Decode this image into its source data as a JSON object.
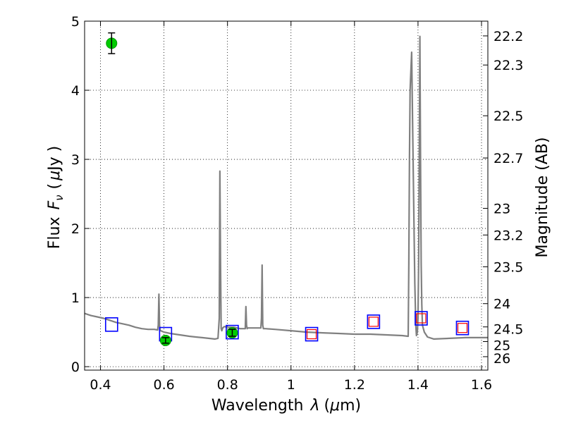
{
  "chart_data": {
    "type": "line",
    "xlabel_text": "Wavelength",
    "xlabel_symbol": "λ",
    "xlabel_unit_open": "(",
    "xlabel_unit_mu": "μ",
    "xlabel_unit_rest": "m)",
    "ylabel_text": "Flux",
    "ylabel_symbol": "F",
    "ylabel_subscript": "ν",
    "ylabel_unit_open": "(",
    "ylabel_unit_mu": "μ",
    "ylabel_unit_rest": "Jy )",
    "y2label": "Magnitude (AB)",
    "xlim": [
      0.35,
      1.62
    ],
    "ylim": [
      -0.05,
      5.0
    ],
    "grid": true,
    "x_ticks": [
      0.4,
      0.6,
      0.8,
      1.0,
      1.2,
      1.4,
      1.6
    ],
    "x_tick_labels": [
      "0.4",
      "0.6",
      "0.8",
      "1",
      "1.2",
      "1.4",
      "1.6"
    ],
    "y_ticks": [
      0,
      1,
      2,
      3,
      4,
      5
    ],
    "y_tick_labels": [
      "0",
      "1",
      "2",
      "3",
      "4",
      "5"
    ],
    "mag_ticks": [
      22.2,
      22.3,
      22.5,
      22.7,
      23,
      23.2,
      23.5,
      24,
      24.5,
      25,
      26
    ],
    "mag_tick_labels": [
      "22.2",
      "22.3",
      "22.5",
      "22.7",
      "23",
      "23.2",
      "23.5",
      "24",
      "24.5",
      "25",
      "26"
    ],
    "series": [
      {
        "kind": "model_spectrum",
        "color": "#808080",
        "x": [
          0.35,
          0.37,
          0.39,
          0.41,
          0.43,
          0.45,
          0.47,
          0.49,
          0.51,
          0.53,
          0.55,
          0.57,
          0.58,
          0.582,
          0.584,
          0.586,
          0.588,
          0.59,
          0.6,
          0.62,
          0.65,
          0.68,
          0.7,
          0.72,
          0.74,
          0.76,
          0.77,
          0.774,
          0.776,
          0.778,
          0.78,
          0.782,
          0.785,
          0.79,
          0.8,
          0.82,
          0.84,
          0.85,
          0.856,
          0.858,
          0.86,
          0.862,
          0.864,
          0.87,
          0.88,
          0.9,
          0.905,
          0.907,
          0.909,
          0.911,
          0.913,
          0.92,
          0.95,
          1.0,
          1.05,
          1.1,
          1.15,
          1.2,
          1.25,
          1.3,
          1.35,
          1.369,
          1.371,
          1.373,
          1.375,
          1.38,
          1.385,
          1.39,
          1.393,
          1.395,
          1.398,
          1.4,
          1.402,
          1.404,
          1.406,
          1.408,
          1.41,
          1.412,
          1.414,
          1.42,
          1.43,
          1.45,
          1.5,
          1.55,
          1.6,
          1.62
        ],
        "y": [
          0.77,
          0.74,
          0.72,
          0.7,
          0.67,
          0.64,
          0.62,
          0.6,
          0.57,
          0.55,
          0.54,
          0.54,
          0.53,
          0.6,
          1.05,
          0.6,
          0.52,
          0.52,
          0.5,
          0.48,
          0.46,
          0.44,
          0.43,
          0.42,
          0.41,
          0.4,
          0.41,
          0.7,
          2.83,
          1.5,
          0.55,
          0.52,
          0.56,
          0.58,
          0.57,
          0.57,
          0.55,
          0.55,
          0.55,
          0.87,
          0.6,
          0.55,
          0.56,
          0.56,
          0.56,
          0.56,
          0.56,
          0.7,
          1.47,
          0.6,
          0.55,
          0.55,
          0.54,
          0.52,
          0.5,
          0.49,
          0.48,
          0.47,
          0.47,
          0.46,
          0.45,
          0.44,
          1.5,
          3.0,
          4.0,
          4.55,
          2.8,
          1.2,
          0.6,
          0.45,
          0.5,
          0.7,
          1.5,
          3.0,
          4.78,
          3.0,
          1.5,
          0.9,
          0.6,
          0.5,
          0.43,
          0.4,
          0.41,
          0.42,
          0.42,
          0.42
        ]
      },
      {
        "kind": "model_photometry",
        "marker": "square",
        "color": "#0000ff",
        "x": [
          0.435,
          0.605,
          0.815,
          1.065,
          1.26,
          1.41,
          1.54
        ],
        "y": [
          0.61,
          0.47,
          0.5,
          0.47,
          0.65,
          0.7,
          0.56
        ]
      },
      {
        "kind": "nir_points",
        "marker": "square",
        "color": "#ff0000",
        "x": [
          1.065,
          1.26,
          1.41,
          1.54
        ],
        "y": [
          0.47,
          0.65,
          0.7,
          0.56
        ]
      },
      {
        "kind": "observed",
        "marker": "circle",
        "color": "#00cc00",
        "x": [
          0.435,
          0.605,
          0.815
        ],
        "y": [
          4.68,
          0.38,
          0.49
        ],
        "yerr": [
          0.15,
          0.04,
          0.05
        ]
      }
    ]
  }
}
